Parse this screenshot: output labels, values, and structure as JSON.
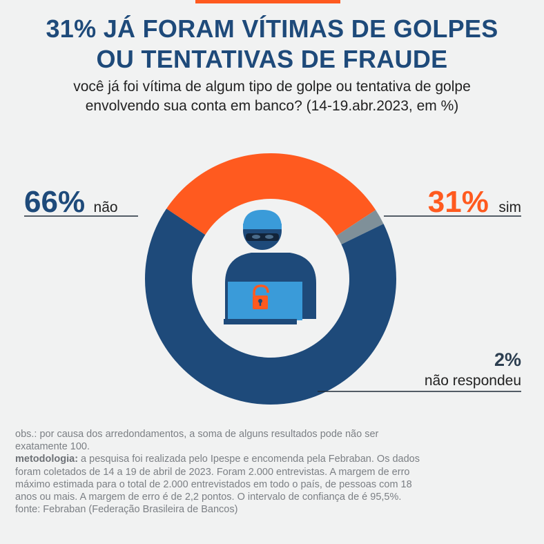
{
  "header": {
    "title_line1": "31% JÁ FORAM VÍTIMAS DE GOLPES",
    "title_line2": "OU TENTATIVAS DE FRAUDE",
    "subtitle_line1": "você já foi vítima de algum tipo de golpe ou tentativa de golpe",
    "subtitle_line2": "envolvendo sua conta em banco? (14-19.abr.2023, em %)"
  },
  "chart_data": {
    "type": "pie",
    "title": "31% JÁ FORAM VÍTIMAS DE GOLPES OU TENTATIVAS DE FRAUDE",
    "subtitle": "você já foi vítima de algum tipo de golpe ou tentativa de golpe envolvendo sua conta em banco? (14-19.abr.2023, em %)",
    "unit": "%",
    "slices": [
      {
        "label": "sim",
        "value": 31,
        "value_text": "31%",
        "color": "#ff5a1f"
      },
      {
        "label": "não respondeu",
        "value": 2,
        "value_text": "2%",
        "color": "#7f9099"
      },
      {
        "label": "não",
        "value": 66,
        "value_text": "66%",
        "color": "#1e4a7a"
      }
    ]
  },
  "notes": {
    "obs": "obs.: por causa dos arredondamentos, a soma de alguns resultados pode não ser exatamente 100.",
    "metodologia_label": "metodologia:",
    "metodologia_text": " a pesquisa foi realizada pelo Ipespe e encomenda pela Febraban. Os dados foram coletados de 14 a 19 de abril de 2023. Foram 2.000 entrevistas. A margem de erro máximo estimada para o total de 2.000 entrevistados em todo o país, de pessoas com 18 anos ou mais. A margem de erro é de 2,2 pontos. O intervalo de confiança de é 95,5%.",
    "fonte": "fonte: Febraban (Federação Brasileira de Bancos)"
  },
  "illustration": {
    "icon": "hacker-with-laptop-icon",
    "lock_icon": "unlocked-padlock-icon",
    "colors": {
      "figure": "#1e4a7a",
      "laptop": "#3a9bd9",
      "lock": "#ff5a1f"
    }
  }
}
